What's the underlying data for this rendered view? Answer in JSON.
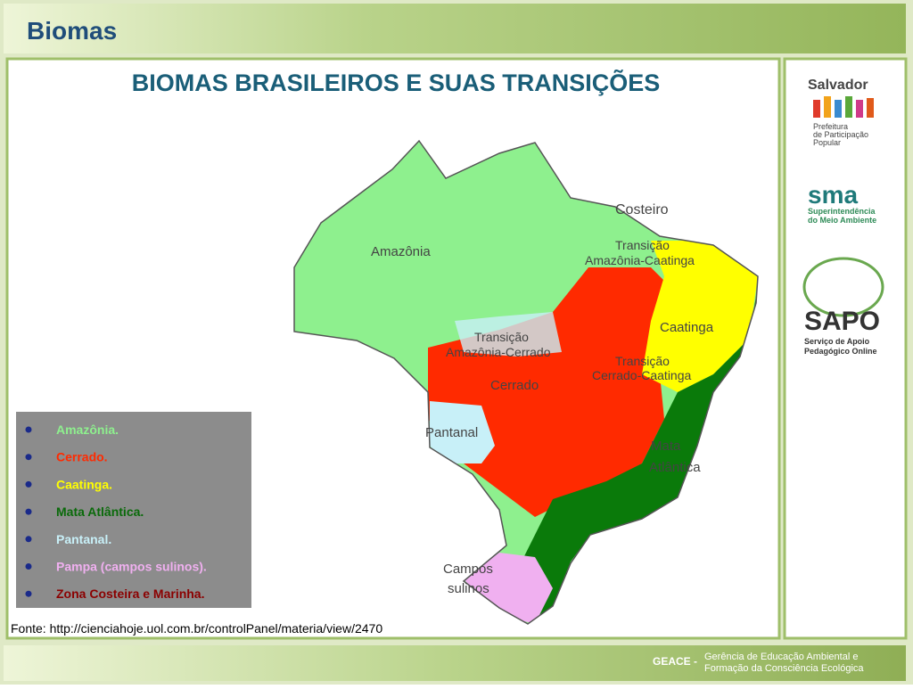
{
  "header": {
    "title": "Biomas"
  },
  "slide": {
    "title": "BIOMAS BRASILEIROS E SUAS TRANSIÇÕES",
    "map_labels": {
      "costeiro": "Costeiro",
      "amazonia": "Amazônia",
      "transicao_amazonia_caatinga": [
        "Transição",
        "Amazônia-Caatinga"
      ],
      "caatinga": "Caatinga",
      "transicao_amazonia_cerrado": [
        "Transição",
        "Amazônia-Cerrado"
      ],
      "transicao_cerrado_caatinga": [
        "Transição",
        "Cerrado-Caatinga"
      ],
      "cerrado": "Cerrado",
      "pantanal": "Pantanal",
      "mata_atlantica": [
        "Mata",
        "Atlântica"
      ],
      "campos_sulinos": [
        "Campos",
        "sulinos"
      ]
    },
    "legend": [
      {
        "label": "Amazônia.",
        "color": "#8ef08e"
      },
      {
        "label": "Cerrado.",
        "color": "#ff2a00"
      },
      {
        "label": "Caatinga.",
        "color": "#ffff00"
      },
      {
        "label": "Mata Atlântica.",
        "color": "#0a6a0a"
      },
      {
        "label": "Pantanal.",
        "color": "#c8f0f8"
      },
      {
        "label": "Pampa (campos sulinos).",
        "color": "#f0b0f0"
      },
      {
        "label": "Zona Costeira e Marinha.",
        "color": "#8b0000"
      }
    ],
    "source": "Fonte: http://cienciahoje.uol.com.br/controlPanel/materia/view/2470"
  },
  "sidebar": {
    "salvador": {
      "title": "Salvador",
      "subtitle": [
        "Prefeitura",
        "de Participação",
        "Popular"
      ]
    },
    "sma": {
      "title": "sma",
      "subtitle": [
        "Superintendência",
        "do Meio Ambiente"
      ]
    },
    "sapo": {
      "title": "SAPO",
      "subtitle": [
        "Serviço de Apoio",
        "Pedagógico Online"
      ]
    }
  },
  "footer": {
    "org": "GEACE -",
    "name": [
      "Gerência de Educação Ambiental e",
      "Formação da Consciência Ecológica"
    ]
  }
}
